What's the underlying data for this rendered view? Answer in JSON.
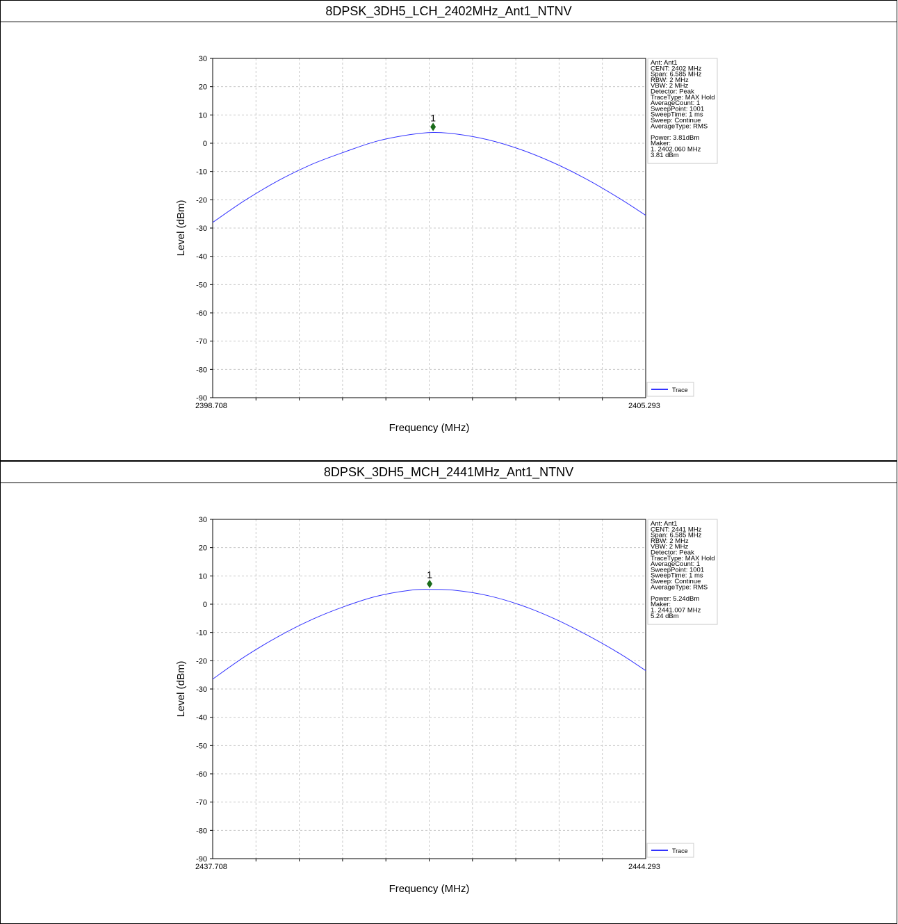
{
  "chart_data": [
    {
      "type": "line",
      "title": "8DPSK_3DH5_LCH_2402MHz_Ant1_NTNV",
      "xlabel": "Frequency (MHz)",
      "ylabel": "Level (dBm)",
      "xlim": [
        2398.708,
        2405.293
      ],
      "ylim": [
        -90,
        30
      ],
      "x_tick_labels": [
        "2398.708",
        "2405.293"
      ],
      "y_ticks": [
        30,
        20,
        10,
        0,
        -10,
        -20,
        -30,
        -40,
        -50,
        -60,
        -70,
        -80,
        -90
      ],
      "grid": true,
      "legend_position": "bottom-right",
      "series": [
        {
          "name": "Trace",
          "color": "#3333ff",
          "x": [
            2398.708,
            2399.2,
            2399.7,
            2400.2,
            2400.7,
            2401.2,
            2401.7,
            2402.06,
            2402.4,
            2402.9,
            2403.4,
            2403.9,
            2404.4,
            2404.9,
            2405.293
          ],
          "y": [
            -28,
            -20.2,
            -13.3,
            -7.6,
            -3.2,
            0.7,
            3.0,
            3.81,
            3.3,
            1.2,
            -2.3,
            -7.0,
            -12.8,
            -19.6,
            -25.5
          ]
        }
      ],
      "marker": {
        "label": "1",
        "x": 2402.06,
        "y": 3.81,
        "color": "#1a6b1a"
      },
      "info_lines": [
        "Ant: Ant1",
        "CENT: 2402 MHz",
        "Span: 6.585 MHz",
        "RBW: 2 MHz",
        "VBW: 2 MHz",
        "Detector: Peak",
        "TraceType: MAX Hold",
        "AverageCount: 1",
        "SweepPoint: 1001",
        "SweepTime: 1 ms",
        "Sweep: Continue",
        "AverageType: RMS",
        "",
        "Power: 3.81dBm",
        "Maker:",
        "1. 2402.060 MHz",
        "    3.81 dBm"
      ]
    },
    {
      "type": "line",
      "title": "8DPSK_3DH5_MCH_2441MHz_Ant1_NTNV",
      "xlabel": "Frequency (MHz)",
      "ylabel": "Level (dBm)",
      "xlim": [
        2437.708,
        2444.293
      ],
      "ylim": [
        -90,
        30
      ],
      "x_tick_labels": [
        "2437.708",
        "2444.293"
      ],
      "y_ticks": [
        30,
        20,
        10,
        0,
        -10,
        -20,
        -30,
        -40,
        -50,
        -60,
        -70,
        -80,
        -90
      ],
      "grid": true,
      "legend_position": "bottom-right",
      "series": [
        {
          "name": "Trace",
          "color": "#3333ff",
          "x": [
            2437.708,
            2438.2,
            2438.7,
            2439.2,
            2439.7,
            2440.2,
            2440.7,
            2441.007,
            2441.4,
            2441.9,
            2442.4,
            2442.9,
            2443.4,
            2443.9,
            2444.293
          ],
          "y": [
            -26.5,
            -18.5,
            -11.5,
            -5.6,
            -0.9,
            2.8,
            4.9,
            5.24,
            4.9,
            3.0,
            -0.4,
            -5.1,
            -10.9,
            -17.5,
            -23.5
          ]
        }
      ],
      "marker": {
        "label": "1",
        "x": 2441.007,
        "y": 5.24,
        "color": "#1a6b1a"
      },
      "info_lines": [
        "Ant: Ant1",
        "CENT: 2441 MHz",
        "Span: 6.585 MHz",
        "RBW: 2 MHz",
        "VBW: 2 MHz",
        "Detector: Peak",
        "TraceType: MAX Hold",
        "AverageCount: 1",
        "SweepPoint: 1001",
        "SweepTime: 1 ms",
        "Sweep: Continue",
        "AverageType: RMS",
        "",
        "Power: 5.24dBm",
        "Maker:",
        "1. 2441.007 MHz",
        "    5.24 dBm"
      ]
    }
  ]
}
